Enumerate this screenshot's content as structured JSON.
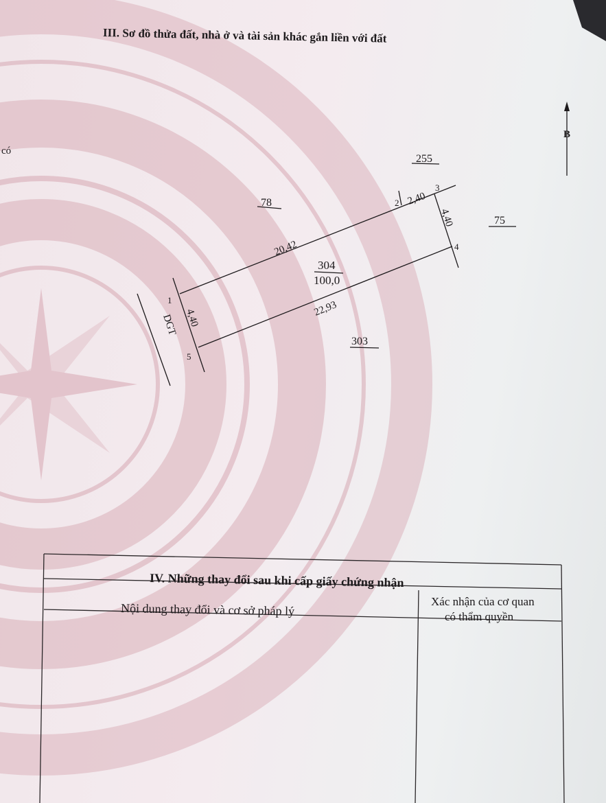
{
  "section3": {
    "title": "III. Sơ đồ thửa đất, nhà ở và tài sản khác gắn liền với đất",
    "margin_fragment": "có",
    "north_label": "B",
    "parcel": {
      "number": "304",
      "area": "100,0"
    },
    "neighbors": {
      "north": "255",
      "northwest": "78",
      "east": "75",
      "south": "303",
      "road": "DGT"
    },
    "vertices": [
      "1",
      "2",
      "3",
      "4",
      "5"
    ],
    "edges": {
      "e1_2": "20,42",
      "e2_3": "2,40",
      "e3_4": "4,40",
      "e4_5": "22,93",
      "e5_1": "4,40"
    }
  },
  "section4": {
    "title": "IV. Những thay đổi sau khi cấp giấy chứng nhận",
    "col1_header": "Nội dung thay đổi và cơ sở pháp lý",
    "col2_header_line1": "Xác nhận của cơ quan",
    "col2_header_line2": "có thẩm quyền"
  },
  "colors": {
    "paper": "#f3eaee",
    "drum_pattern": "#d9aeb8",
    "ink": "#1d1a1c"
  }
}
